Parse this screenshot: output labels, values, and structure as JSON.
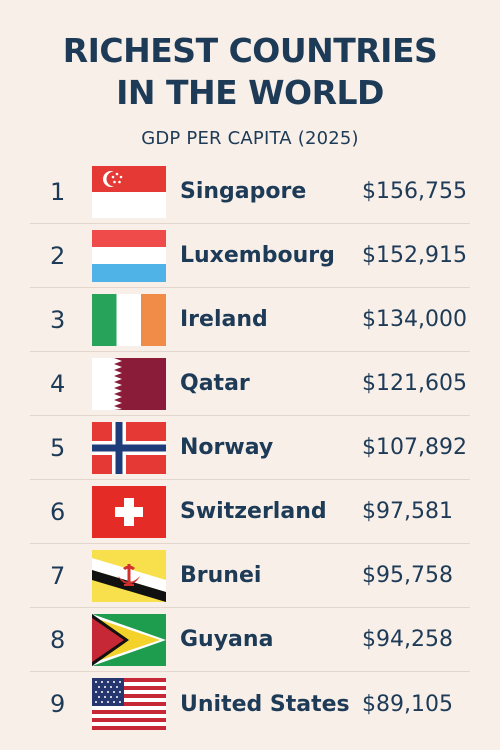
{
  "header": {
    "title_line1": "RICHEST COUNTRIES",
    "title_line2": "IN THE WORLD",
    "subtitle": "GDP PER CAPITA (2025)"
  },
  "rows": [
    {
      "rank": "1",
      "country": "Singapore",
      "gdp": "$156,755",
      "flag_icon": "singapore-flag-icon"
    },
    {
      "rank": "2",
      "country": "Luxembourg",
      "gdp": "$152,915",
      "flag_icon": "luxembourg-flag-icon"
    },
    {
      "rank": "3",
      "country": "Ireland",
      "gdp": "$134,000",
      "flag_icon": "ireland-flag-icon"
    },
    {
      "rank": "4",
      "country": "Qatar",
      "gdp": "$121,605",
      "flag_icon": "qatar-flag-icon"
    },
    {
      "rank": "5",
      "country": "Norway",
      "gdp": "$107,892",
      "flag_icon": "norway-flag-icon"
    },
    {
      "rank": "6",
      "country": "Switzerland",
      "gdp": "$97,581",
      "flag_icon": "switzerland-flag-icon"
    },
    {
      "rank": "7",
      "country": "Brunei",
      "gdp": "$95,758",
      "flag_icon": "brunei-flag-icon"
    },
    {
      "rank": "8",
      "country": "Guyana",
      "gdp": "$94,258",
      "flag_icon": "guyana-flag-icon"
    },
    {
      "rank": "9",
      "country": "United States",
      "gdp": "$89,105",
      "flag_icon": "usa-flag-icon"
    }
  ],
  "colors": {
    "background": "#f8efe8",
    "text": "#1d3a57",
    "divider": "#e3d6cc"
  }
}
